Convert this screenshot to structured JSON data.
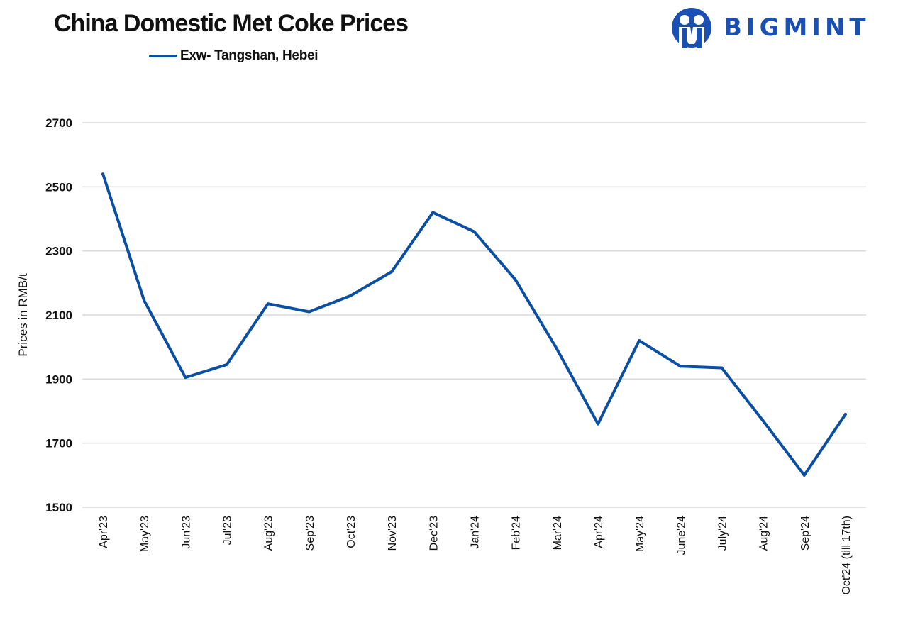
{
  "header": {
    "title": "China Domestic Met Coke Prices",
    "logo_text": "BIGMINT",
    "logo_icon": "bigmint-people-logo-icon"
  },
  "colors": {
    "series": "#0a4fa3",
    "grid": "#d9d9d9",
    "logo": "#1a4fb4",
    "text": "#111111"
  },
  "chart_data": {
    "type": "line",
    "title": "China Domestic Met Coke Prices",
    "xlabel": "",
    "ylabel": "Prices in RMB/t",
    "ylim": [
      1500,
      2700
    ],
    "yticks": [
      1500,
      1700,
      1900,
      2100,
      2300,
      2500,
      2700
    ],
    "grid": true,
    "legend": "top-left",
    "categories": [
      "Apr'23",
      "May'23",
      "Jun'23",
      "Jul'23",
      "Aug'23",
      "Sep'23",
      "Oct'23",
      "Nov'23",
      "Dec'23",
      "Jan'24",
      "Feb'24",
      "Mar'24",
      "Apr'24",
      "May'24",
      "June'24",
      "July'24",
      "Aug'24",
      "Sep'24",
      "Oct'24 (till 17th)"
    ],
    "series": [
      {
        "name": "Exw- Tangshan, Hebei",
        "values": [
          2540,
          2145,
          1905,
          1945,
          2135,
          2110,
          2160,
          2235,
          2420,
          2360,
          2210,
          1995,
          1760,
          2020,
          1940,
          1935,
          1770,
          1600,
          1790
        ]
      }
    ]
  }
}
